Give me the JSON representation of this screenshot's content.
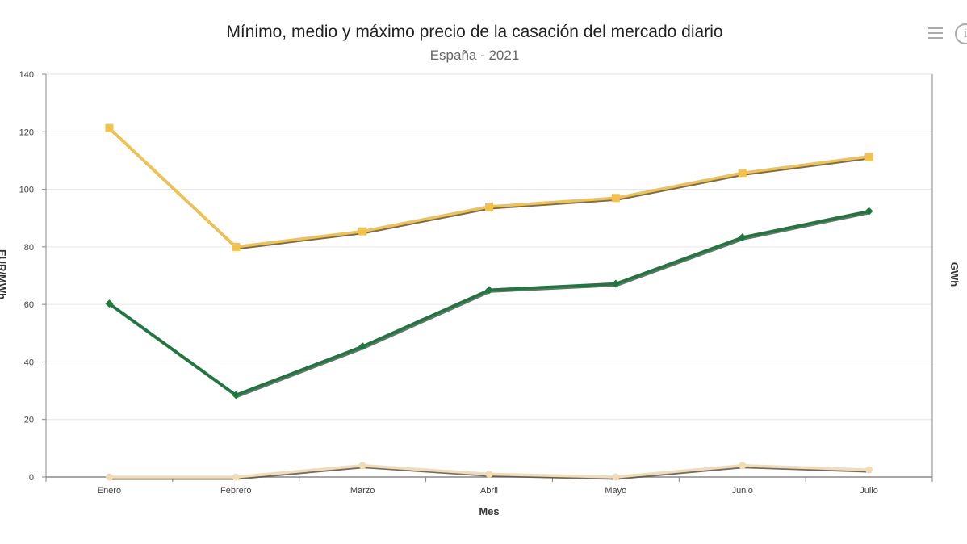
{
  "toolbar": {
    "menu_icon": "hamburger-menu-icon",
    "info_icon": "info-icon"
  },
  "chart_data": {
    "type": "line",
    "title": "Mínimo, medio y máximo precio de la casación del mercado diario",
    "subtitle": "España - 2021",
    "xlabel": "Mes",
    "ylabel": "EUR/MWh",
    "y2label": "GWh",
    "categories": [
      "Enero",
      "Febrero",
      "Marzo",
      "Abril",
      "Mayo",
      "Junio",
      "Julio"
    ],
    "ylim": [
      0,
      140
    ],
    "yticks": [
      0,
      20,
      40,
      60,
      80,
      100,
      120,
      140
    ],
    "grid": true,
    "series": [
      {
        "role": "min",
        "color": "#f2dcb4",
        "values": [
          0,
          0,
          4,
          1,
          0,
          4,
          2.5
        ]
      },
      {
        "role": "mean",
        "color": "#1a7a3c",
        "values": [
          60.3,
          28.5,
          45.4,
          65.0,
          67.2,
          83.3,
          92.4
        ]
      },
      {
        "role": "max",
        "color": "#f3c24a",
        "values": [
          121.3,
          80.0,
          85.4,
          94.0,
          97.0,
          105.7,
          111.4
        ]
      }
    ]
  }
}
